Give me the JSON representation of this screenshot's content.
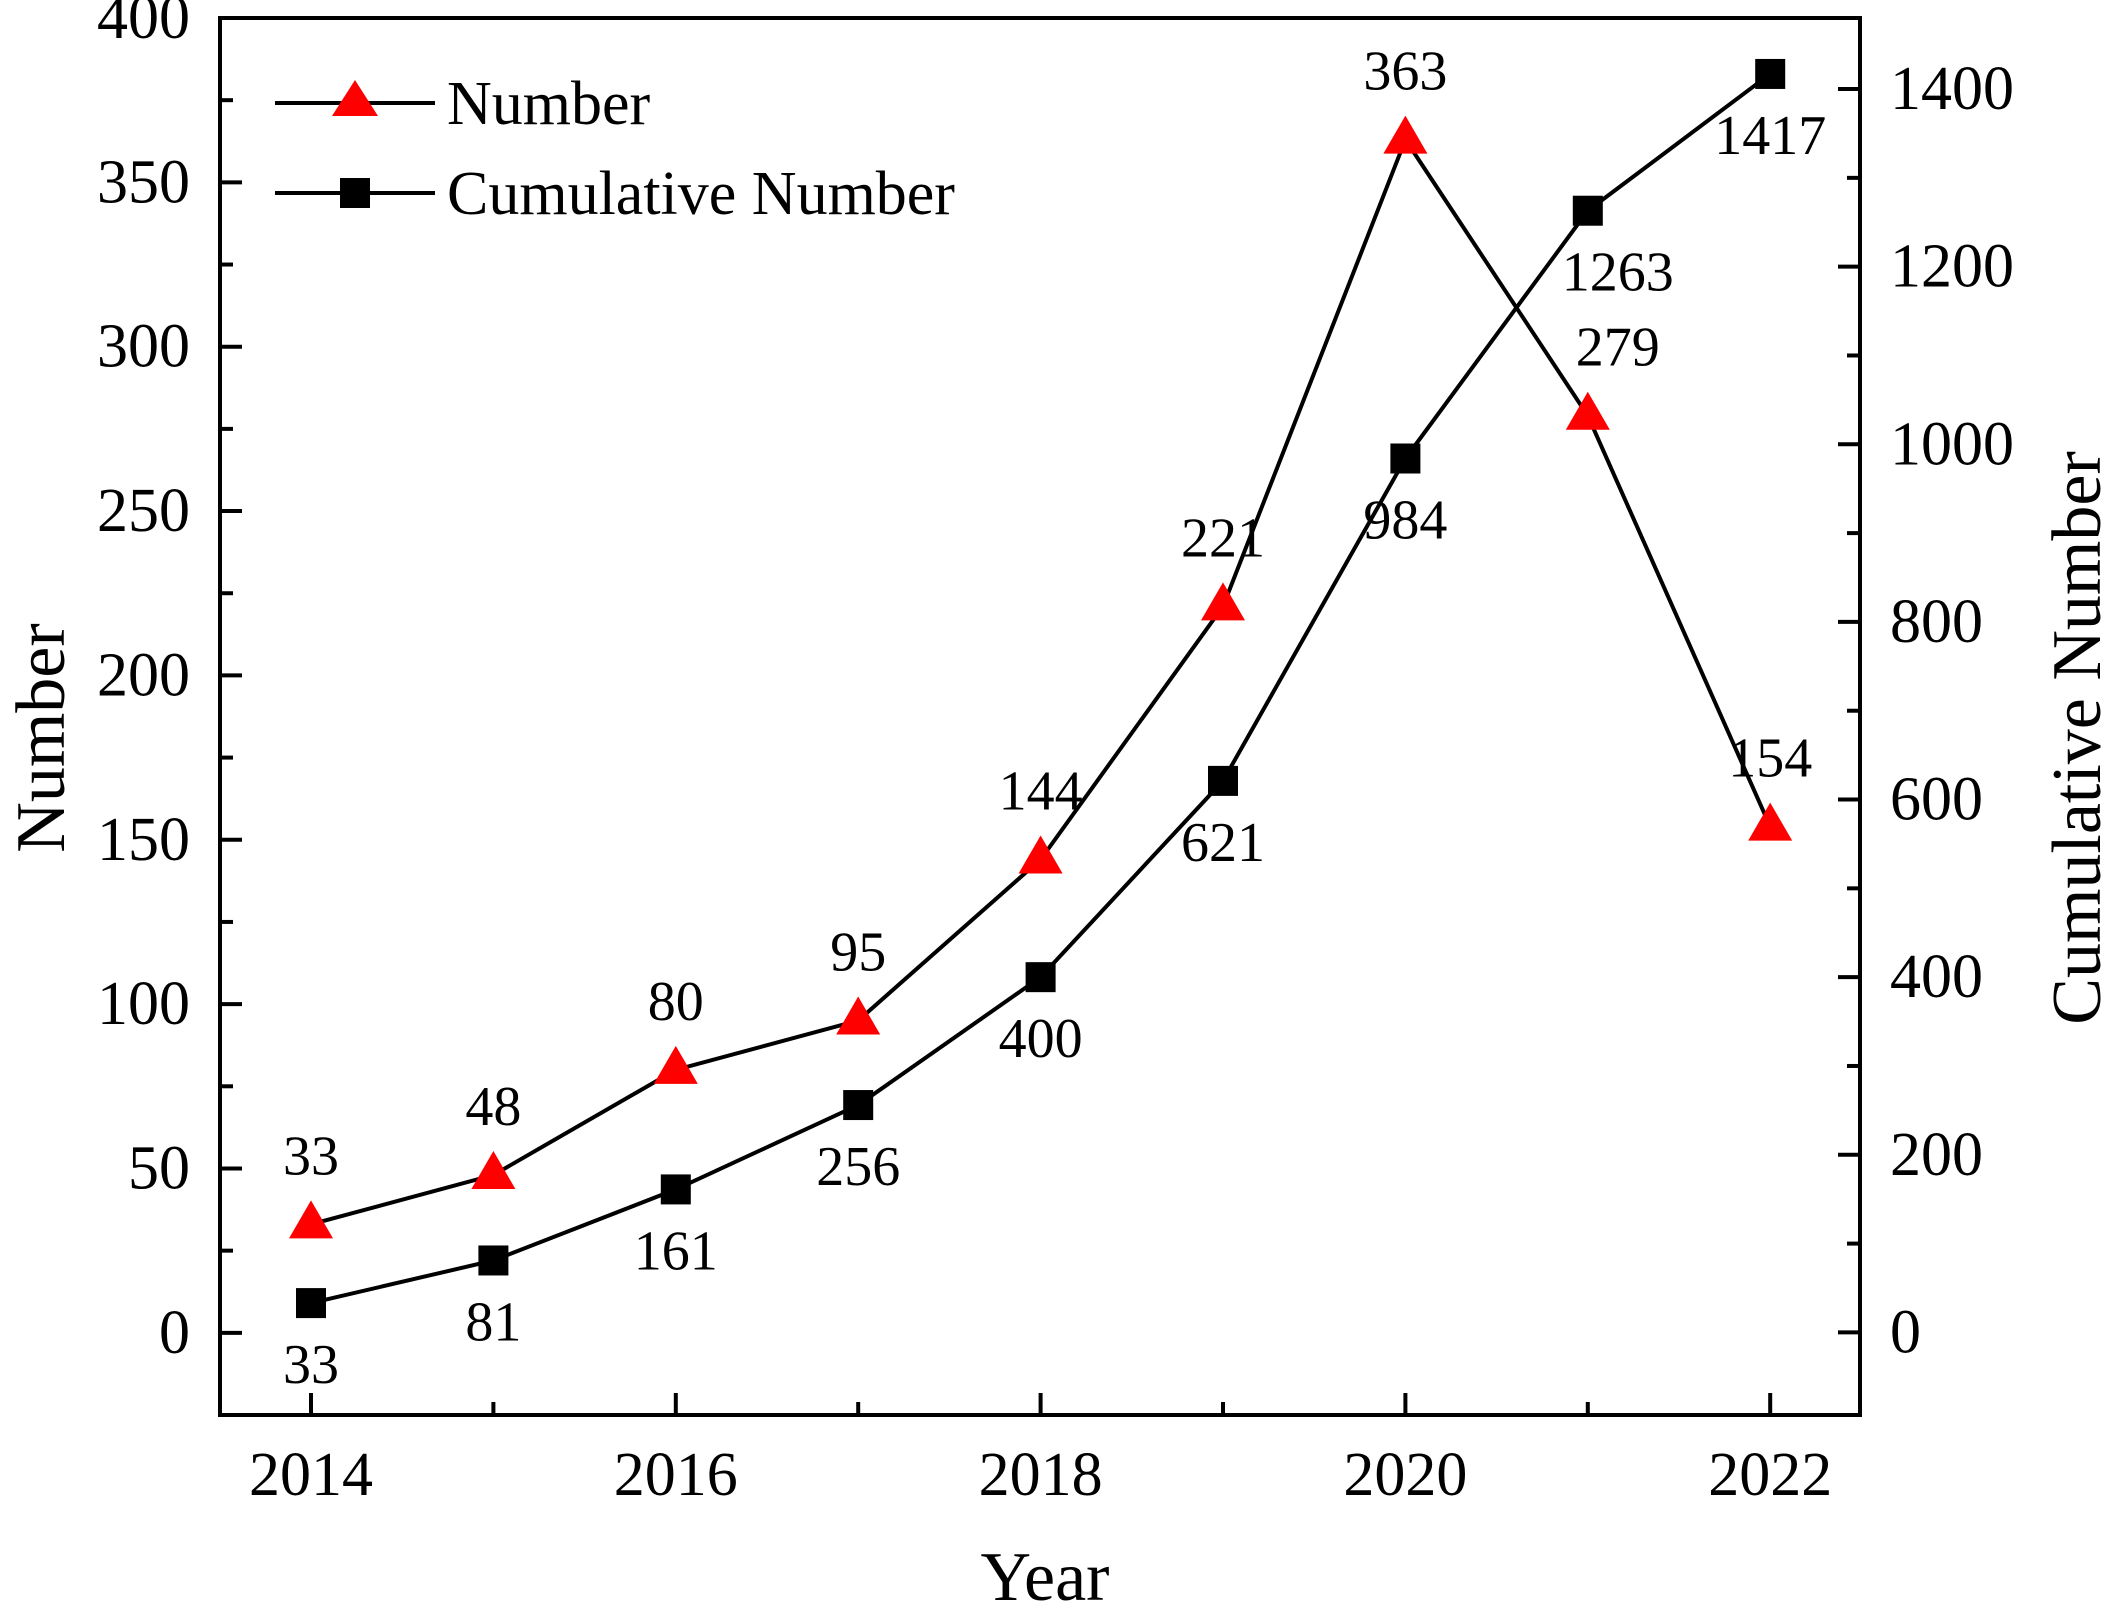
{
  "chart_data": {
    "type": "line",
    "categories": [
      "2014",
      "2015",
      "2016",
      "2017",
      "2018",
      "2019",
      "2020",
      "2021",
      "2022"
    ],
    "x_tick_labels": [
      "2014",
      "2016",
      "2018",
      "2020",
      "2022"
    ],
    "xlabel": "Year",
    "ylabel_left": "Number",
    "ylabel_right": "Cumulative Number",
    "ylim_left": [
      -25,
      400
    ],
    "ylim_right": [
      -93,
      1480
    ],
    "y_ticks_left": [
      0,
      50,
      100,
      150,
      200,
      250,
      300,
      350,
      400
    ],
    "y_ticks_right": [
      0,
      200,
      400,
      600,
      800,
      1000,
      1200,
      1400
    ],
    "grid": false,
    "legend_position": "top-left",
    "series": [
      {
        "name": "Number",
        "axis": "left",
        "marker": "triangle",
        "color": "#ff0000",
        "values": [
          33,
          48,
          80,
          95,
          144,
          221,
          363,
          279,
          154
        ],
        "labels": [
          "33",
          "48",
          "80",
          "95",
          "144",
          "221",
          "363",
          "279",
          "154"
        ]
      },
      {
        "name": "Cumulative Number",
        "axis": "right",
        "marker": "square",
        "color": "#000000",
        "values": [
          33,
          81,
          161,
          256,
          400,
          621,
          984,
          1263,
          1417
        ],
        "labels": [
          "33",
          "81",
          "161",
          "256",
          "400",
          "621",
          "984",
          "1263",
          "1417"
        ]
      }
    ]
  }
}
